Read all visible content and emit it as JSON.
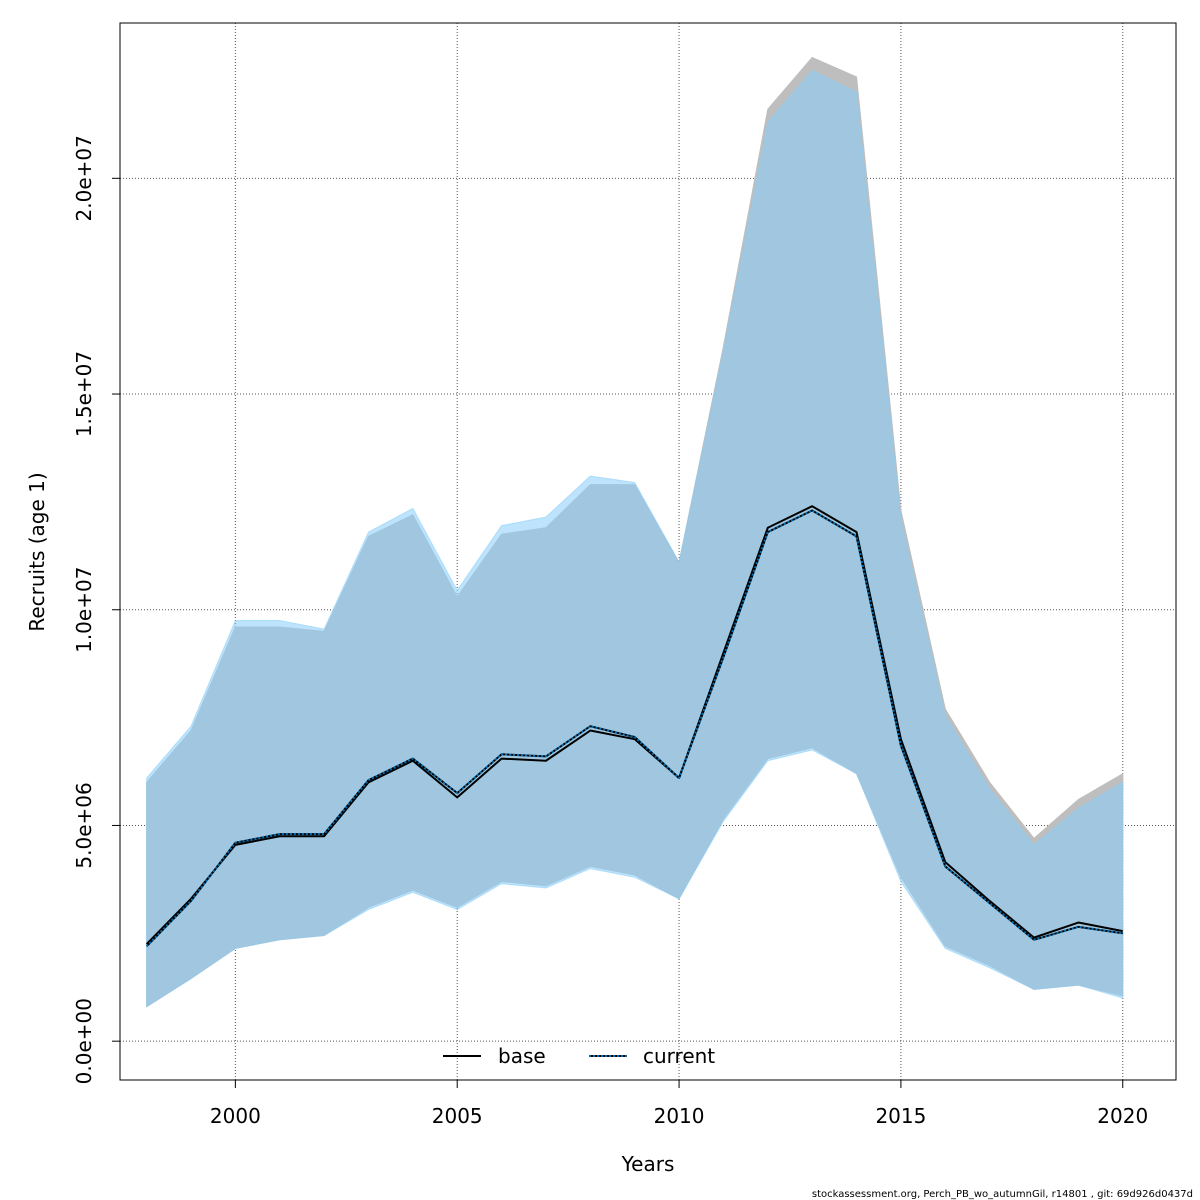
{
  "chart_data": {
    "type": "line",
    "xlabel": "Years",
    "ylabel": "Recruits (age 1)",
    "xlim": [
      1997.4,
      2021.2
    ],
    "ylim": [
      -900000,
      23600000
    ],
    "x_ticks": [
      "2000",
      "2005",
      "2010",
      "2015",
      "2020"
    ],
    "x_tick_values": [
      2000,
      2005,
      2010,
      2015,
      2020
    ],
    "y_ticks": [
      "0.0e+00",
      "5.0e+06",
      "1.0e+07",
      "1.5e+07",
      "2.0e+07"
    ],
    "y_tick_values": [
      0,
      5000000,
      10000000,
      15000000,
      20000000
    ],
    "grid": true,
    "legend_position": "bottom",
    "x": [
      1998,
      1999,
      2000,
      2001,
      2002,
      2003,
      2004,
      2005,
      2006,
      2007,
      2008,
      2009,
      2010,
      2011,
      2012,
      2013,
      2014,
      2015,
      2016,
      2017,
      2018,
      2019,
      2020
    ],
    "series": [
      {
        "name": "base",
        "color": "#000000",
        "line_style": "solid",
        "band_color": "#bebebe",
        "values": [
          2250000,
          3300000,
          4550000,
          4750000,
          4750000,
          6000000,
          6500000,
          5650000,
          6550000,
          6500000,
          7200000,
          7000000,
          6100000,
          9000000,
          11900000,
          12400000,
          11800000,
          7000000,
          4150000,
          3250000,
          2400000,
          2750000,
          2550000
        ],
        "lower": [
          800000,
          1450000,
          2150000,
          2350000,
          2450000,
          3100000,
          3500000,
          3100000,
          3700000,
          3600000,
          4050000,
          3850000,
          3300000,
          5150000,
          6550000,
          6800000,
          6200000,
          3800000,
          2200000,
          1750000,
          1200000,
          1300000,
          1050000
        ],
        "upper": [
          6000000,
          7200000,
          9600000,
          9600000,
          9500000,
          11700000,
          12200000,
          10300000,
          11750000,
          11900000,
          12900000,
          12900000,
          11100000,
          16100000,
          21600000,
          22800000,
          22350000,
          12300000,
          7700000,
          6000000,
          4700000,
          5600000,
          6200000
        ]
      },
      {
        "name": "current",
        "color": "#0070b8",
        "line_style": "dotted",
        "band_color": "#87cefa",
        "values": [
          2200000,
          3250000,
          4600000,
          4800000,
          4800000,
          6050000,
          6550000,
          5750000,
          6650000,
          6600000,
          7300000,
          7050000,
          6100000,
          8900000,
          11800000,
          12300000,
          11700000,
          6850000,
          4050000,
          3200000,
          2350000,
          2650000,
          2500000
        ],
        "lower": [
          800000,
          1450000,
          2150000,
          2350000,
          2450000,
          3050000,
          3450000,
          3050000,
          3650000,
          3550000,
          4000000,
          3800000,
          3300000,
          5100000,
          6500000,
          6750000,
          6200000,
          3700000,
          2150000,
          1700000,
          1200000,
          1300000,
          1000000
        ],
        "upper": [
          6100000,
          7300000,
          9750000,
          9750000,
          9550000,
          11800000,
          12350000,
          10450000,
          11950000,
          12150000,
          13100000,
          12950000,
          11100000,
          16000000,
          21300000,
          22500000,
          22000000,
          12100000,
          7550000,
          5850000,
          4550000,
          5400000,
          6000000
        ]
      }
    ]
  },
  "footer_text": "stockassessment.org, Perch_PB_wo_autumnGil, r14801 , git: 69d926d0437d"
}
